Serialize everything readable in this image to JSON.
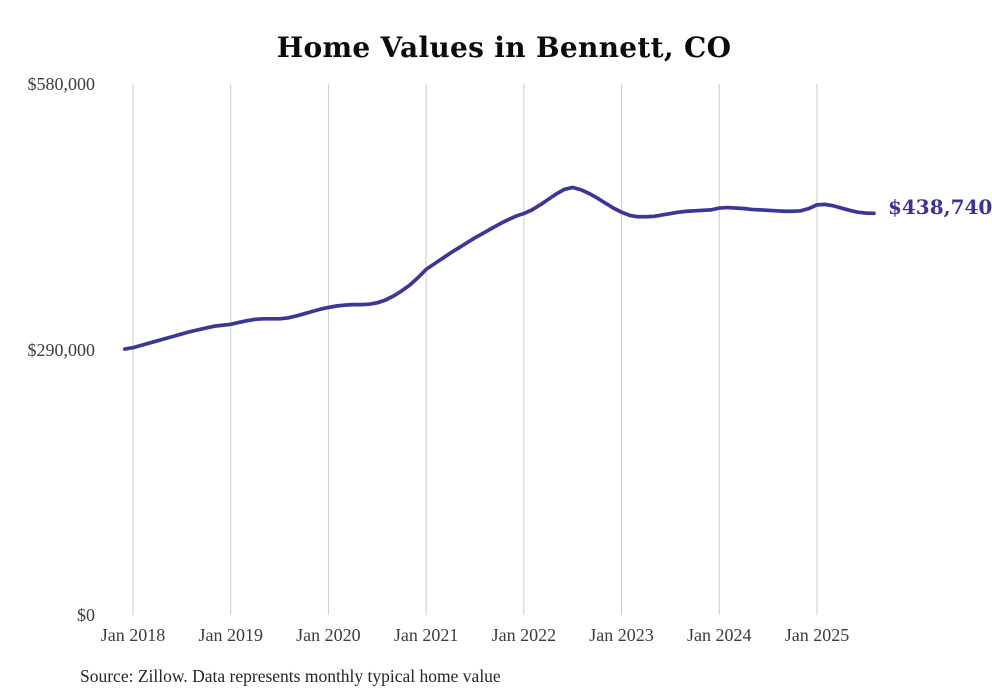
{
  "chart": {
    "title": "Home Values in Bennett, CO",
    "source_note": "Source: Zillow. Data represents monthly typical home value",
    "end_label": "$438,740"
  },
  "colors": {
    "line": "#3b3799",
    "end_label": "#39349a",
    "gridline": "#cccccc",
    "tick_text": "#3d3d3d",
    "title_text": "#0b0b0b",
    "source_text": "#262626",
    "background": "#ffffff"
  },
  "chart_data": {
    "type": "line",
    "title": "Home Values in Bennett, CO",
    "x_interval": "monthly",
    "x_start": "Dec 2017",
    "x_end": "Aug 2025",
    "x_tick_labels": [
      "Jan 2018",
      "Jan 2019",
      "Jan 2020",
      "Jan 2021",
      "Jan 2022",
      "Jan 2023",
      "Jan 2024",
      "Jan 2025"
    ],
    "y_ticks": [
      {
        "label": "$580,000",
        "value": 580000
      },
      {
        "label": "$290,000",
        "value": 290000
      },
      {
        "label": "$0",
        "value": 0
      }
    ],
    "ylim": [
      0,
      580000
    ],
    "grid": "vertical-only",
    "legend": "none",
    "end_value": 438740,
    "series": [
      {
        "name": "Typical home value",
        "values": [
          290500,
          292000,
          294500,
          297000,
          299500,
          302000,
          304500,
          307000,
          309500,
          311500,
          313500,
          315500,
          316500,
          317500,
          319500,
          321500,
          323000,
          323500,
          323500,
          323500,
          324500,
          326500,
          329000,
          331500,
          334000,
          336000,
          337500,
          338500,
          339000,
          339000,
          339500,
          341000,
          344000,
          348500,
          354000,
          360500,
          368500,
          377500,
          383500,
          389500,
          395500,
          401000,
          406500,
          412000,
          417000,
          422000,
          427000,
          431500,
          435500,
          438500,
          442500,
          448000,
          454000,
          460000,
          465000,
          467000,
          464500,
          460500,
          455500,
          450000,
          444500,
          440000,
          436500,
          435000,
          435000,
          435500,
          437000,
          438500,
          440000,
          441000,
          441500,
          442000,
          442500,
          444500,
          445000,
          444500,
          444000,
          443000,
          442500,
          442000,
          441500,
          441000,
          441000,
          441500,
          444000,
          448000,
          448500,
          447000,
          444500,
          442000,
          440000,
          439000,
          438740
        ]
      }
    ]
  }
}
